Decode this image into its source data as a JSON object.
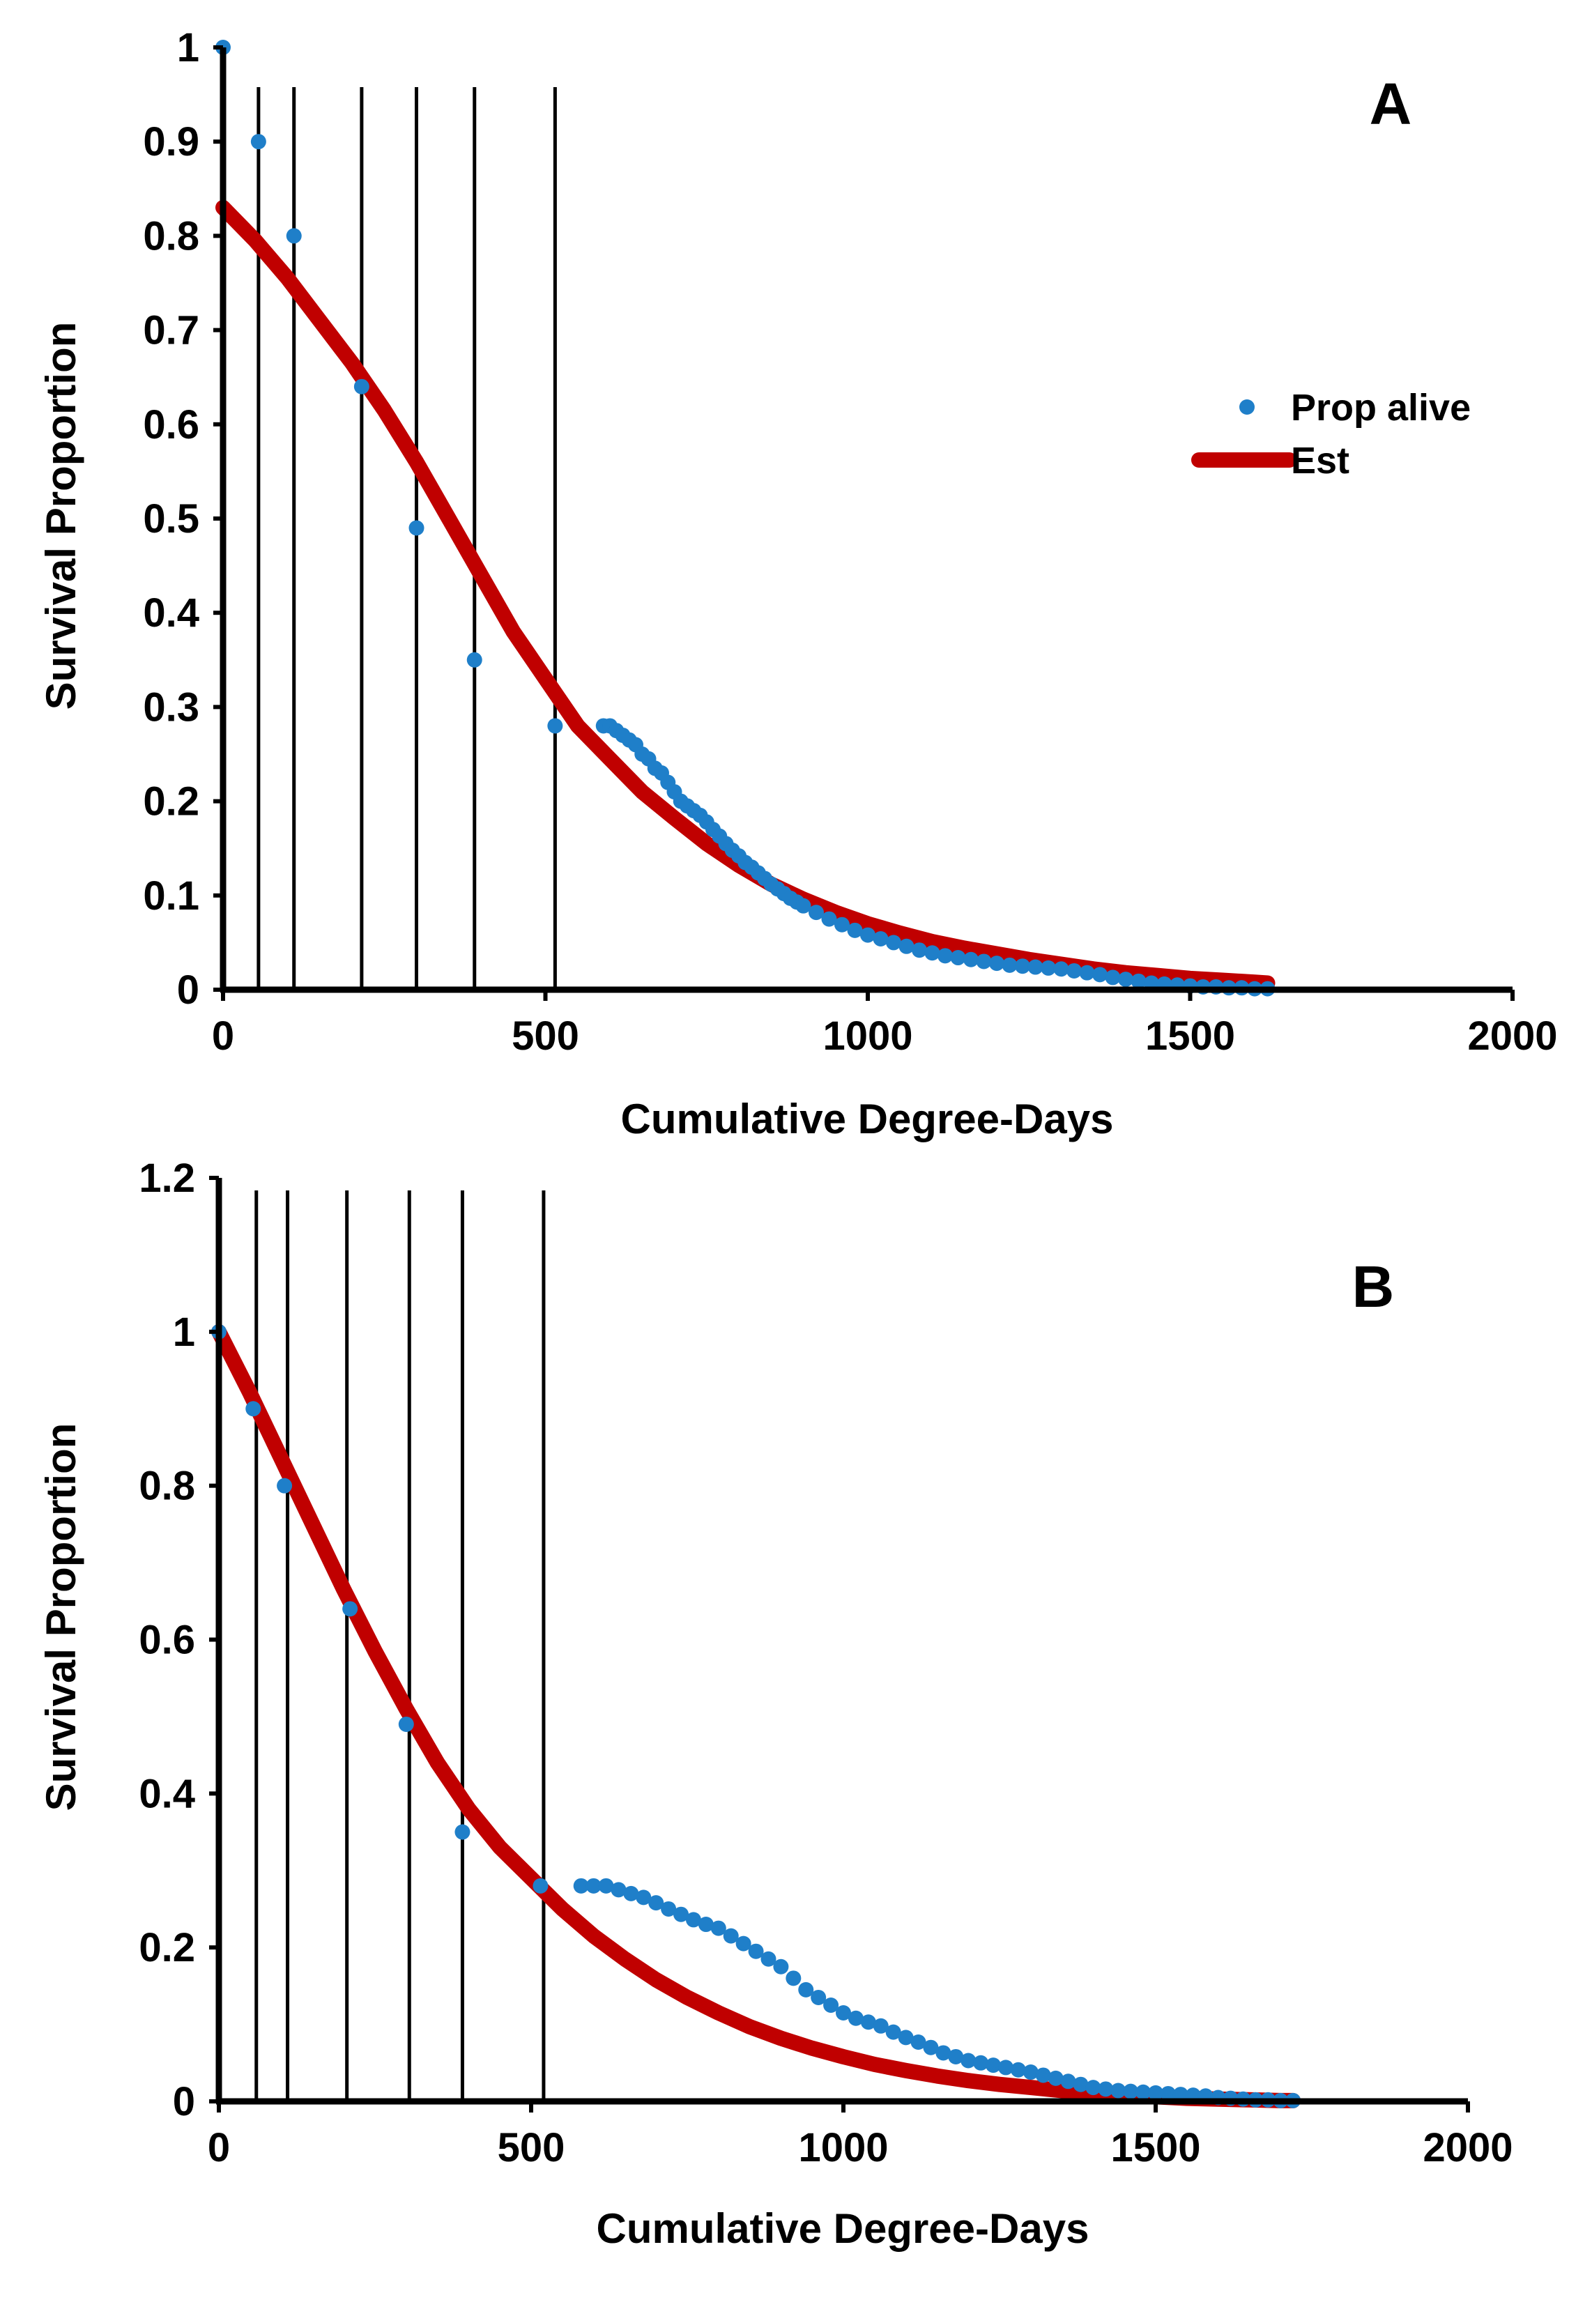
{
  "colors": {
    "dots": "#1f7fc9",
    "curve": "#c00000",
    "axis": "#000000"
  },
  "chart_data": [
    {
      "panel": "A",
      "type": "scatter",
      "xlabel": "Cumulative Degree-Days",
      "ylabel": "Survival Proportion",
      "xlim": [
        0,
        2000
      ],
      "ylim": [
        0,
        1
      ],
      "xticks": [
        0,
        500,
        1000,
        1500,
        2000
      ],
      "xtick_labels": [
        "0",
        "500",
        "1000",
        "1500",
        "2000"
      ],
      "yticks": [
        0,
        0.1,
        0.2,
        0.3,
        0.4,
        0.5,
        0.6,
        0.7,
        0.8,
        0.9,
        1
      ],
      "ytick_labels": [
        "0",
        "0.1",
        "0.2",
        "0.3",
        "0.4",
        "0.5",
        "0.6",
        "0.7",
        "0.8",
        "0.9",
        "1"
      ],
      "legend": {
        "position": "right",
        "entries": [
          "Prop alive",
          "Est"
        ]
      },
      "vertical_lines_x": [
        0,
        55,
        110,
        215,
        300,
        390,
        515
      ],
      "series": [
        {
          "name": "Prop alive",
          "kind": "points",
          "x": [
            0,
            55,
            110,
            215,
            300,
            390,
            515,
            590,
            600,
            610,
            620,
            630,
            640,
            650,
            660,
            670,
            680,
            690,
            700,
            710,
            720,
            730,
            740,
            750,
            760,
            770,
            780,
            790,
            800,
            810,
            820,
            830,
            840,
            850,
            860,
            870,
            880,
            890,
            900,
            920,
            940,
            960,
            980,
            1000,
            1020,
            1040,
            1060,
            1080,
            1100,
            1120,
            1140,
            1160,
            1180,
            1200,
            1220,
            1240,
            1260,
            1280,
            1300,
            1320,
            1340,
            1360,
            1380,
            1400,
            1420,
            1440,
            1460,
            1480,
            1500,
            1520,
            1540,
            1560,
            1580,
            1600,
            1620
          ],
          "y": [
            1.0,
            0.9,
            0.8,
            0.64,
            0.49,
            0.35,
            0.28,
            0.28,
            0.28,
            0.275,
            0.27,
            0.265,
            0.26,
            0.25,
            0.245,
            0.235,
            0.23,
            0.22,
            0.21,
            0.2,
            0.195,
            0.19,
            0.185,
            0.178,
            0.17,
            0.163,
            0.155,
            0.148,
            0.142,
            0.135,
            0.13,
            0.124,
            0.118,
            0.112,
            0.107,
            0.102,
            0.097,
            0.093,
            0.089,
            0.082,
            0.075,
            0.069,
            0.063,
            0.058,
            0.054,
            0.05,
            0.046,
            0.042,
            0.039,
            0.036,
            0.034,
            0.032,
            0.03,
            0.028,
            0.026,
            0.025,
            0.024,
            0.023,
            0.022,
            0.02,
            0.018,
            0.016,
            0.013,
            0.011,
            0.009,
            0.007,
            0.006,
            0.005,
            0.004,
            0.003,
            0.003,
            0.002,
            0.002,
            0.001,
            0.001
          ]
        },
        {
          "name": "Est",
          "kind": "line",
          "x": [
            0,
            50,
            100,
            150,
            200,
            250,
            300,
            350,
            400,
            450,
            500,
            550,
            600,
            650,
            700,
            750,
            800,
            850,
            900,
            950,
            1000,
            1050,
            1100,
            1150,
            1200,
            1250,
            1300,
            1350,
            1400,
            1450,
            1500,
            1550,
            1600,
            1620
          ],
          "y": [
            0.83,
            0.795,
            0.755,
            0.71,
            0.665,
            0.615,
            0.56,
            0.5,
            0.44,
            0.38,
            0.33,
            0.28,
            0.245,
            0.21,
            0.182,
            0.155,
            0.132,
            0.112,
            0.096,
            0.082,
            0.07,
            0.06,
            0.051,
            0.044,
            0.038,
            0.032,
            0.027,
            0.022,
            0.018,
            0.015,
            0.012,
            0.01,
            0.008,
            0.007
          ]
        }
      ]
    },
    {
      "panel": "B",
      "type": "scatter",
      "xlabel": "Cumulative Degree-Days",
      "ylabel": "Survival Proportion",
      "xlim": [
        0,
        2000
      ],
      "ylim": [
        0,
        1.2
      ],
      "xticks": [
        0,
        500,
        1000,
        1500,
        2000
      ],
      "xtick_labels": [
        "0",
        "500",
        "1000",
        "1500",
        "2000"
      ],
      "yticks": [
        0,
        0.2,
        0.4,
        0.6,
        0.8,
        1,
        1.2
      ],
      "ytick_labels": [
        "0",
        "0.2",
        "0.4",
        "0.6",
        "0.8",
        "1",
        "1.2"
      ],
      "vertical_lines_x": [
        0,
        60,
        110,
        205,
        305,
        390,
        520
      ],
      "series": [
        {
          "name": "Prop alive",
          "kind": "points",
          "x": [
            0,
            55,
            105,
            210,
            300,
            390,
            515,
            580,
            600,
            620,
            640,
            660,
            680,
            700,
            720,
            740,
            760,
            780,
            800,
            820,
            840,
            860,
            880,
            900,
            920,
            940,
            960,
            980,
            1000,
            1020,
            1040,
            1060,
            1080,
            1100,
            1120,
            1140,
            1160,
            1180,
            1200,
            1220,
            1240,
            1260,
            1280,
            1300,
            1320,
            1340,
            1360,
            1380,
            1400,
            1420,
            1440,
            1460,
            1480,
            1500,
            1520,
            1540,
            1560,
            1580,
            1600,
            1620,
            1640,
            1660,
            1680,
            1700,
            1720
          ],
          "y": [
            1.0,
            0.9,
            0.8,
            0.64,
            0.49,
            0.35,
            0.28,
            0.28,
            0.28,
            0.28,
            0.275,
            0.27,
            0.265,
            0.258,
            0.25,
            0.243,
            0.236,
            0.23,
            0.225,
            0.215,
            0.205,
            0.195,
            0.185,
            0.175,
            0.16,
            0.145,
            0.135,
            0.125,
            0.115,
            0.108,
            0.103,
            0.098,
            0.09,
            0.083,
            0.077,
            0.07,
            0.063,
            0.058,
            0.053,
            0.05,
            0.047,
            0.044,
            0.041,
            0.038,
            0.034,
            0.03,
            0.026,
            0.022,
            0.018,
            0.016,
            0.014,
            0.013,
            0.012,
            0.011,
            0.01,
            0.009,
            0.008,
            0.007,
            0.005,
            0.004,
            0.003,
            0.002,
            0.002,
            0.001,
            0.001
          ]
        },
        {
          "name": "Est",
          "kind": "line",
          "x": [
            0,
            50,
            100,
            150,
            200,
            250,
            300,
            350,
            400,
            450,
            500,
            550,
            600,
            650,
            700,
            750,
            800,
            850,
            900,
            950,
            1000,
            1050,
            1100,
            1150,
            1200,
            1250,
            1300,
            1350,
            1400,
            1450,
            1500,
            1550,
            1600,
            1650,
            1700,
            1720
          ],
          "y": [
            1.0,
            0.92,
            0.835,
            0.75,
            0.665,
            0.585,
            0.51,
            0.44,
            0.38,
            0.33,
            0.29,
            0.25,
            0.215,
            0.185,
            0.158,
            0.135,
            0.115,
            0.097,
            0.082,
            0.069,
            0.058,
            0.048,
            0.04,
            0.033,
            0.027,
            0.022,
            0.018,
            0.014,
            0.011,
            0.008,
            0.006,
            0.004,
            0.003,
            0.002,
            0.001,
            0.001
          ]
        }
      ]
    }
  ],
  "panels": [
    {
      "label": "A",
      "xlabel": "Cumulative Degree-Days",
      "ylabel": "Survival Proportion",
      "legend": {
        "entries": [
          "Prop alive",
          "Est"
        ]
      }
    },
    {
      "label": "B",
      "xlabel": "Cumulative Degree-Days",
      "ylabel": "Survival Proportion"
    }
  ]
}
